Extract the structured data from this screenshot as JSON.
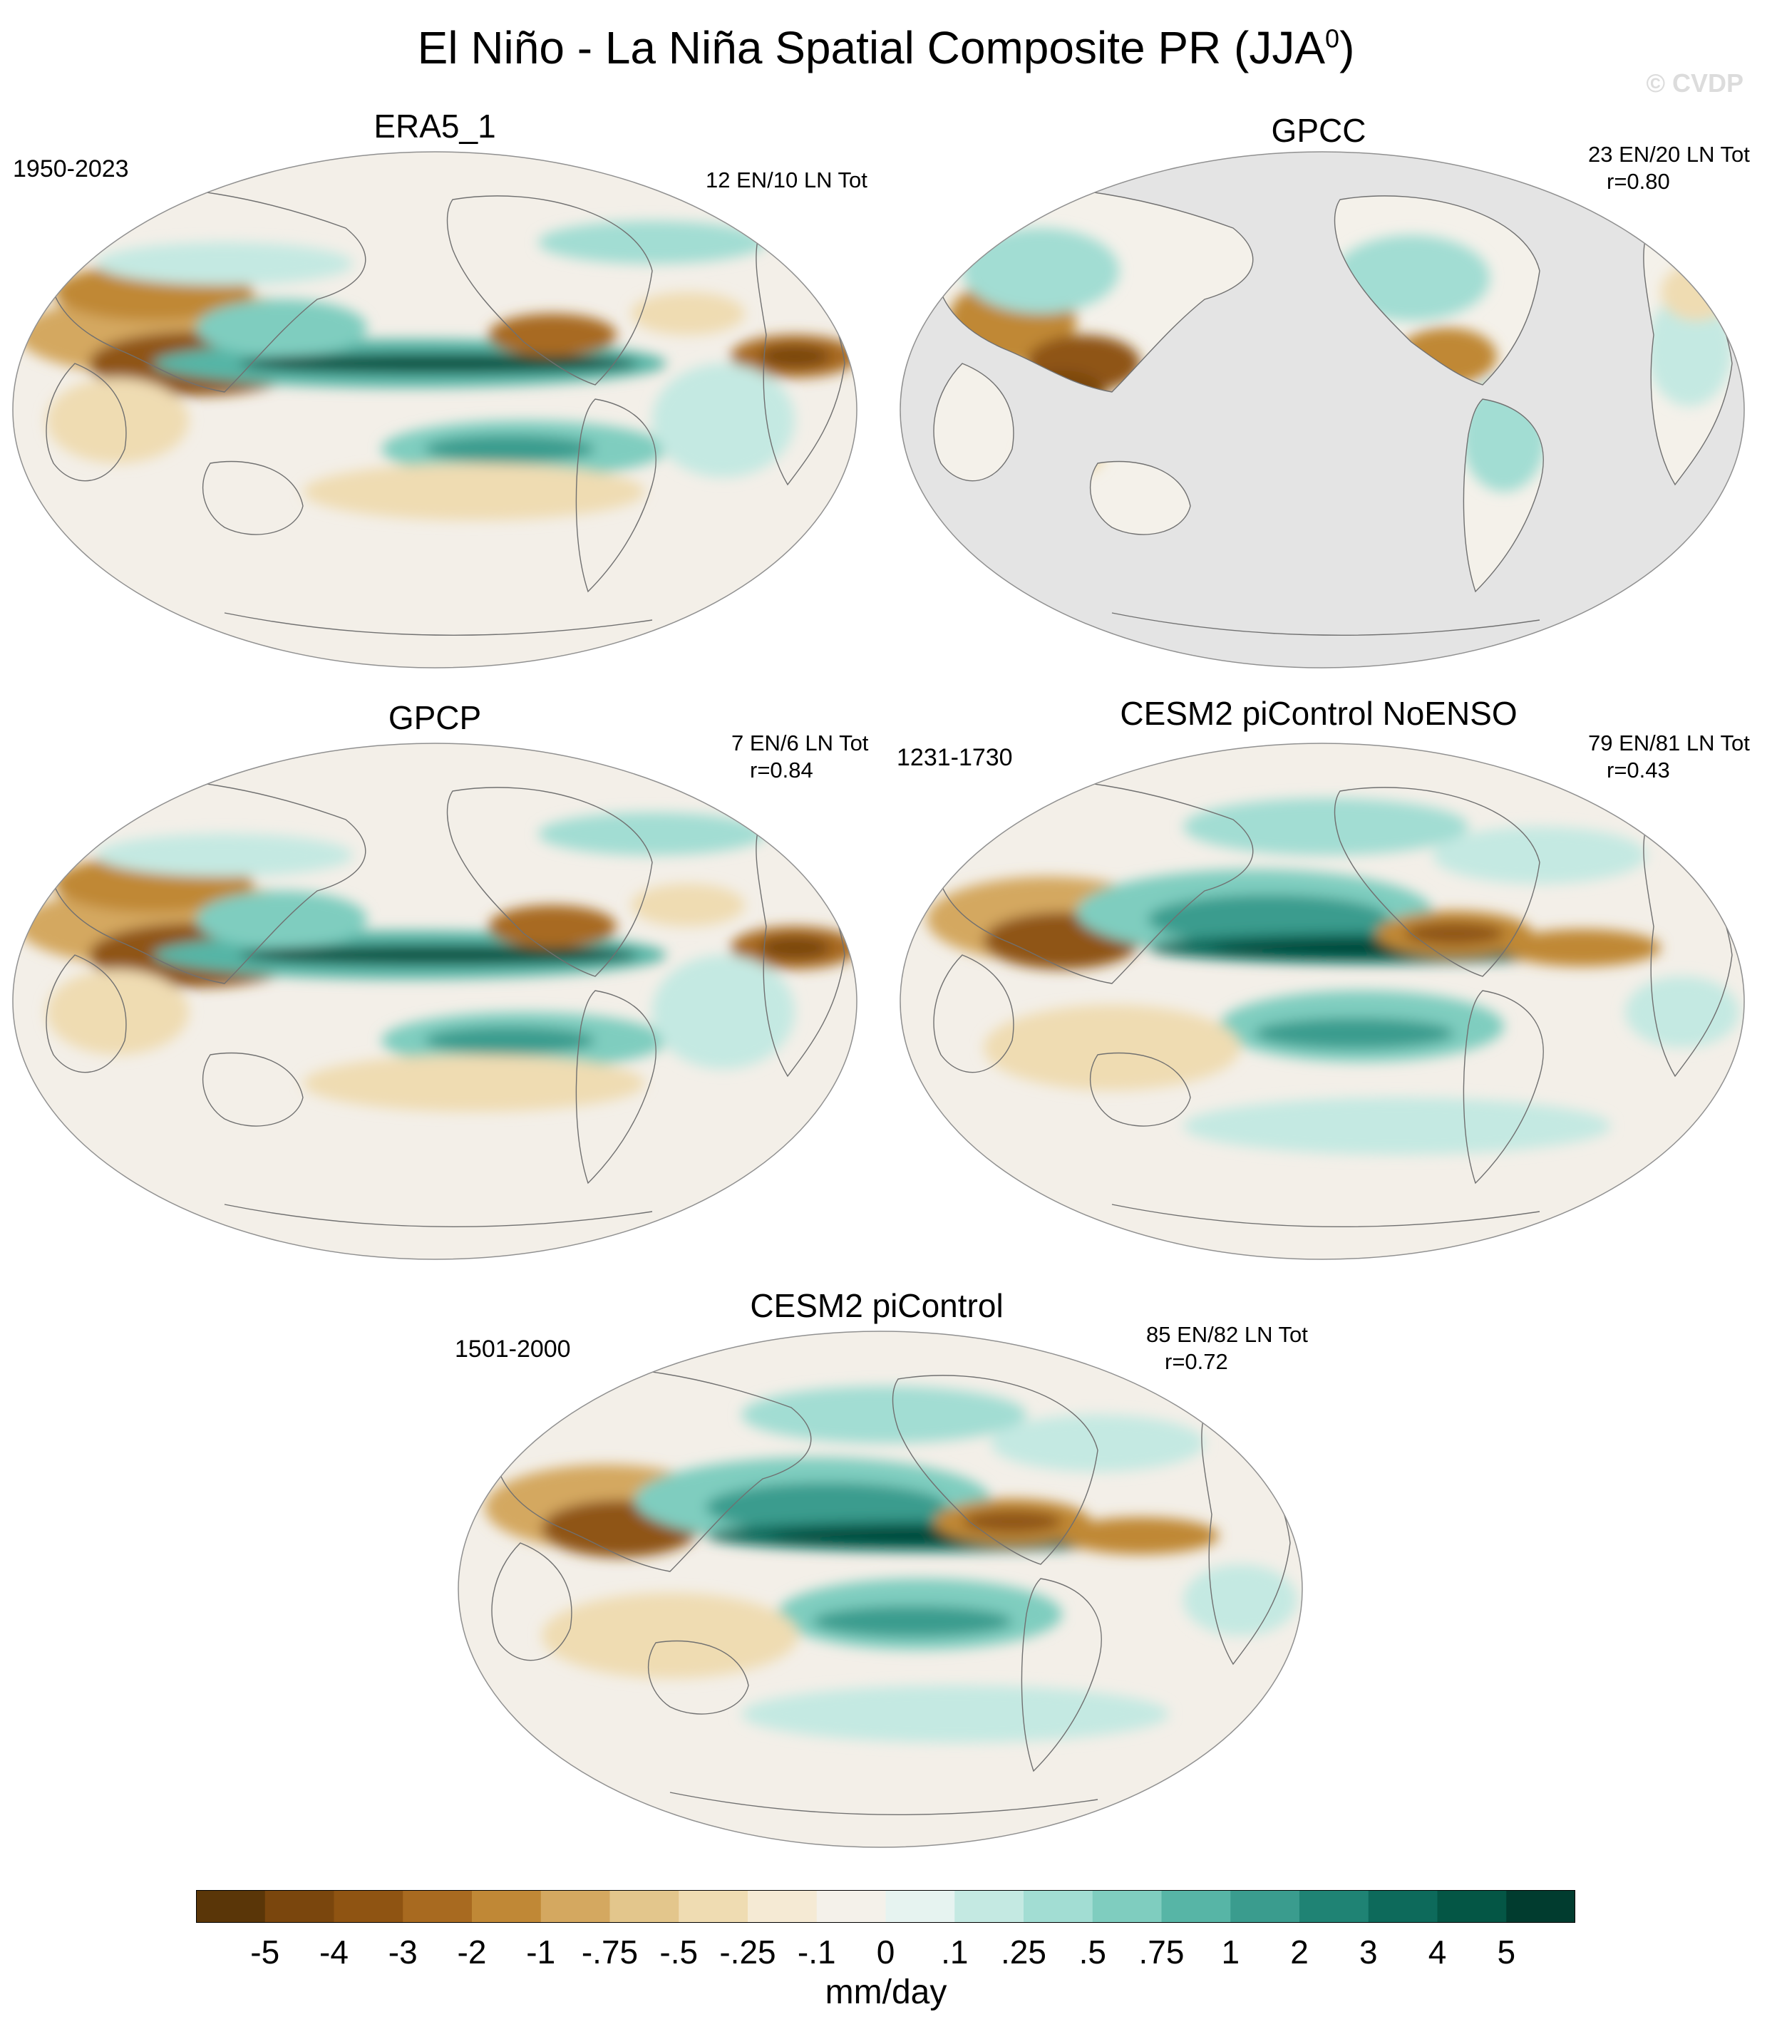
{
  "title": "El Niño - La Niña Spatial Composite PR (JJA",
  "title_superscript": "0",
  "title_close": ")",
  "watermark": "© CVDP",
  "colors": {
    "ocean_missing": "#e4e4e4",
    "coastline": "#707070",
    "frame": "#909090",
    "neutral": "#f3efe8"
  },
  "panels": [
    {
      "id": "era5",
      "title": "ERA5_1",
      "years": "1950-2023",
      "stats": [
        "12 EN/10 LN Tot"
      ],
      "pattern": "obs",
      "missing_ocean": false
    },
    {
      "id": "gpcc",
      "title": "GPCC",
      "years": "",
      "stats": [
        "23 EN/20 LN Tot",
        "r=0.80"
      ],
      "pattern": "land-only",
      "missing_ocean": true
    },
    {
      "id": "gpcp",
      "title": "GPCP",
      "years": "",
      "stats": [
        "7 EN/6 LN Tot",
        "r=0.84"
      ],
      "pattern": "obs",
      "missing_ocean": false
    },
    {
      "id": "cesm2-noenso",
      "title": "CESM2 piControl NoENSO",
      "years": "1231-1730",
      "stats": [
        "79 EN/81 LN Tot",
        "r=0.43"
      ],
      "pattern": "model",
      "missing_ocean": false
    },
    {
      "id": "cesm2",
      "title": "CESM2 piControl",
      "years": "1501-2000",
      "stats": [
        "85 EN/82 LN Tot",
        "r=0.72"
      ],
      "pattern": "model",
      "missing_ocean": false
    }
  ],
  "colorbar": {
    "units": "mm/day",
    "tick_labels": [
      "-5",
      "-4",
      "-3",
      "-2",
      "-1",
      "-.75",
      "-.5",
      "-.25",
      "-.1",
      "0",
      ".1",
      ".25",
      ".5",
      ".75",
      "1",
      "2",
      "3",
      "4",
      "5"
    ],
    "colors": [
      "#5a3608",
      "#7a460d",
      "#8f5412",
      "#a86a20",
      "#c08836",
      "#d4a860",
      "#e3c68c",
      "#efdcb2",
      "#f5ead4",
      "#f4f1ea",
      "#e6f3f0",
      "#c4e9e2",
      "#a2ddd3",
      "#7fcdbf",
      "#57b5a6",
      "#3a9c8e",
      "#1f8374",
      "#0d6a5b",
      "#045645",
      "#013c2f"
    ]
  }
}
